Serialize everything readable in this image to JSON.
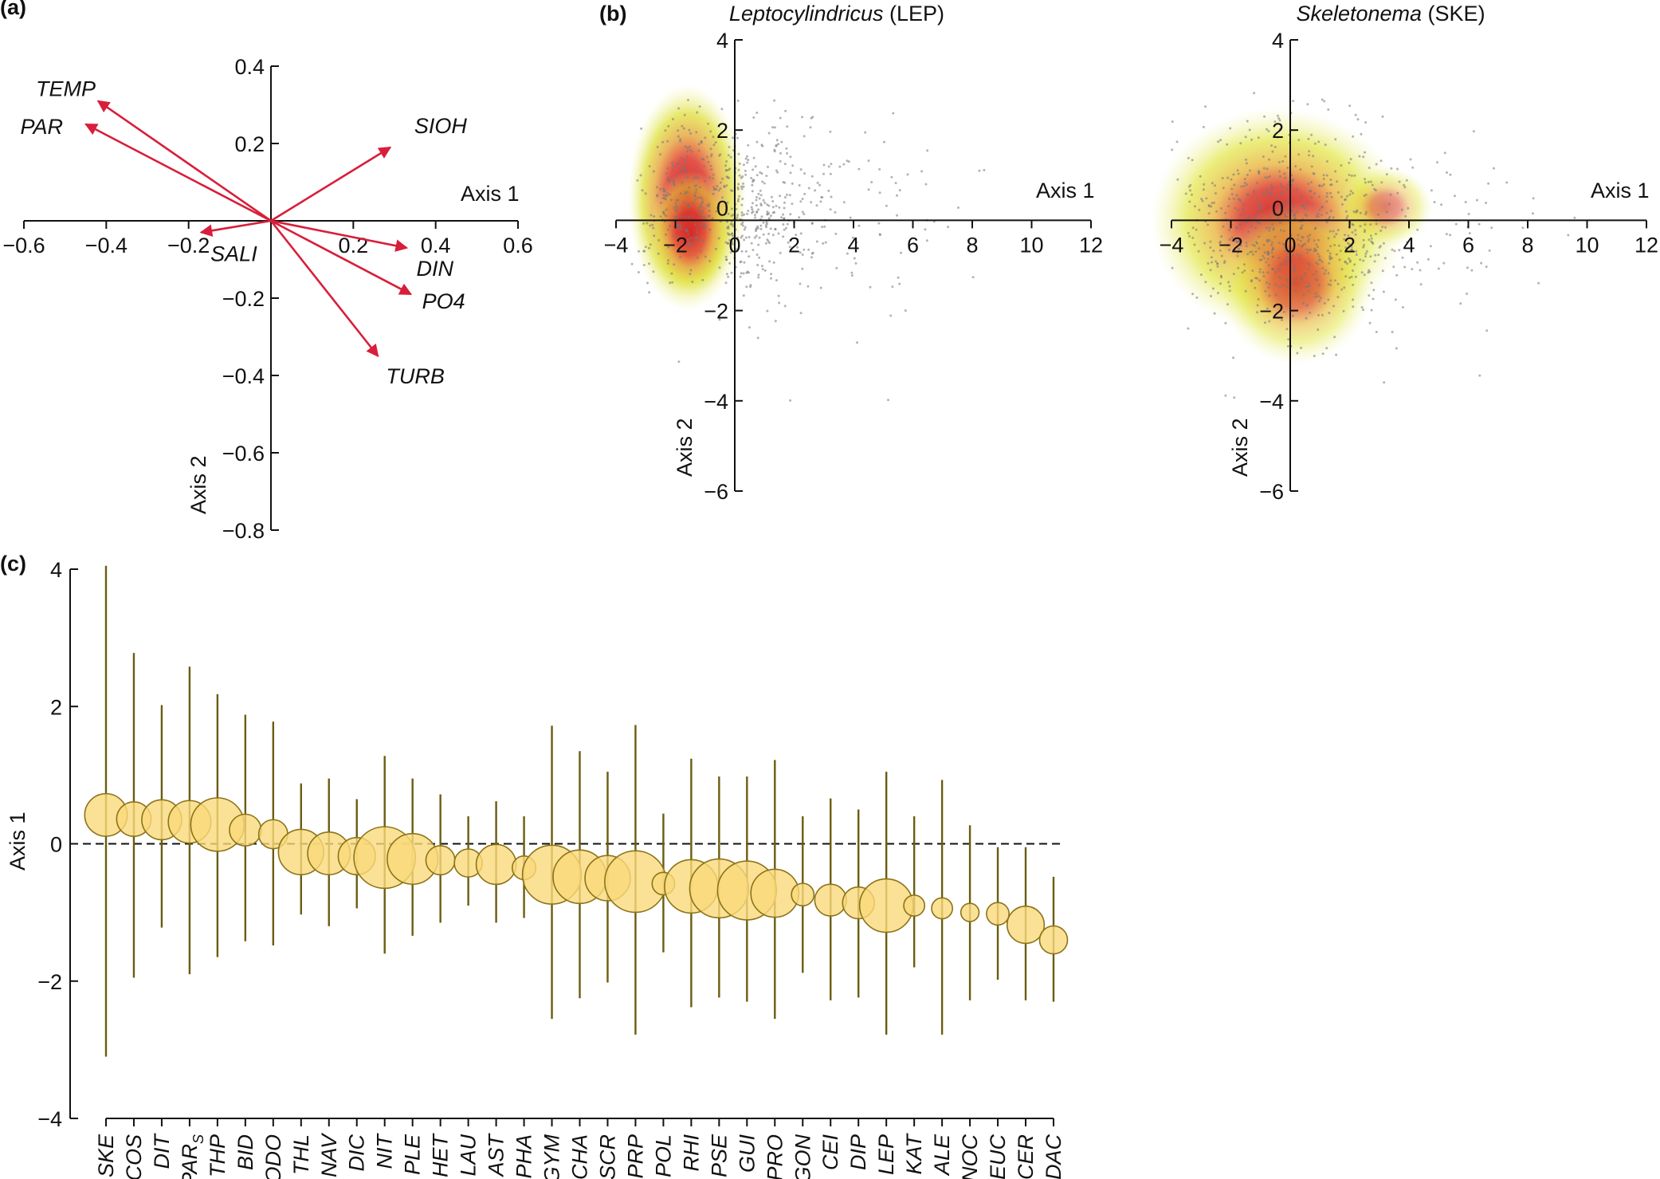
{
  "chart_data": [
    {
      "panel": "(a)",
      "type": "biplot",
      "xlabel": "Axis 1",
      "ylabel": "Axis 2",
      "xlim": [
        -0.6,
        0.6
      ],
      "ylim": [
        -0.8,
        0.4
      ],
      "xticks": [
        "−0.6",
        "−0.4",
        "−0.2",
        "0.2",
        "0.4",
        "0.6"
      ],
      "xtick_values": [
        -0.6,
        -0.4,
        -0.2,
        0.2,
        0.4,
        0.6
      ],
      "yticks": [
        "0.4",
        "0.2",
        "−0.2",
        "−0.4",
        "−0.6",
        "−0.8"
      ],
      "ytick_values": [
        0.4,
        0.2,
        -0.2,
        -0.4,
        -0.6,
        -0.8
      ],
      "vectors": [
        {
          "label": "TEMP",
          "x": -0.42,
          "y": 0.31
        },
        {
          "label": "PAR",
          "x": -0.45,
          "y": 0.25
        },
        {
          "label": "SIOH",
          "x": 0.29,
          "y": 0.19
        },
        {
          "label": "SALI",
          "x": -0.17,
          "y": -0.03
        },
        {
          "label": "DIN",
          "x": 0.33,
          "y": -0.07
        },
        {
          "label": "PO4",
          "x": 0.34,
          "y": -0.19
        },
        {
          "label": "TURB",
          "x": 0.26,
          "y": -0.35
        }
      ]
    },
    {
      "panel": "(b)",
      "type": "scatter",
      "title_italic": "Leptocylindricus",
      "title_plain": " (LEP)",
      "xlabel": "Axis 1",
      "ylabel": "Axis 2",
      "xlim": [
        -4,
        12
      ],
      "ylim": [
        -6,
        4
      ],
      "xticks": [
        "−4",
        "−2",
        "0",
        "2",
        "4",
        "6",
        "8",
        "10",
        "12"
      ],
      "xtick_values": [
        -4,
        -2,
        0,
        2,
        4,
        6,
        8,
        10,
        12
      ],
      "yticks": [
        "4",
        "2",
        "−2",
        "−4",
        "−6"
      ],
      "ytick_values": [
        4,
        2,
        -2,
        -4,
        -6
      ],
      "density_core": {
        "x": -1.6,
        "y": 0.5
      },
      "scatter_spread": {
        "x_min": -3.5,
        "x_max": 11,
        "y_min": -4.8,
        "y_max": 2.8
      }
    },
    {
      "panel": "",
      "type": "scatter",
      "title_italic": "Skeletonema",
      "title_plain": " (SKE)",
      "xlabel": "Axis 1",
      "ylabel": "Axis 2",
      "xlim": [
        -4,
        12
      ],
      "ylim": [
        -6,
        4
      ],
      "xticks": [
        "−4",
        "−2",
        "0",
        "2",
        "4",
        "6",
        "8",
        "10",
        "12"
      ],
      "xtick_values": [
        -4,
        -2,
        0,
        2,
        4,
        6,
        8,
        10,
        12
      ],
      "yticks": [
        "4",
        "2",
        "−2",
        "−4",
        "−6"
      ],
      "ytick_values": [
        4,
        2,
        -2,
        -4,
        -6
      ],
      "density_core": {
        "x": -0.4,
        "y": 0.0
      },
      "scatter_spread": {
        "x_min": -4,
        "x_max": 11,
        "y_min": -4.8,
        "y_max": 3
      }
    },
    {
      "panel": "(c)",
      "type": "bubble-range",
      "ylabel": "Axis 1",
      "ylim": [
        -4,
        4
      ],
      "yticks": [
        "4",
        "2",
        "0",
        "−2",
        "−4"
      ],
      "ytick_values": [
        4,
        2,
        0,
        -2,
        -4
      ],
      "reference_line": 0,
      "categories": [
        "SKE",
        "COS",
        "DIT",
        "PAR",
        "THP",
        "BID",
        "ODO",
        "THL",
        "NAV",
        "DIC",
        "NIT",
        "PLE",
        "HET",
        "LAU",
        "AST",
        "PHA",
        "GYM",
        "CHA",
        "SCR",
        "PRP",
        "POL",
        "RHI",
        "PSE",
        "GUI",
        "PRO",
        "GON",
        "CEI",
        "DIP",
        "LEP",
        "KAT",
        "ALE",
        "NOC",
        "EUC",
        "CER",
        "DAC"
      ],
      "category_subscripts": {
        "PAR": "S"
      },
      "means": [
        0.42,
        0.36,
        0.35,
        0.32,
        0.28,
        0.2,
        0.14,
        -0.12,
        -0.14,
        -0.18,
        -0.2,
        -0.22,
        -0.24,
        -0.28,
        -0.3,
        -0.35,
        -0.45,
        -0.48,
        -0.5,
        -0.55,
        -0.58,
        -0.62,
        -0.65,
        -0.68,
        -0.72,
        -0.74,
        -0.82,
        -0.86,
        -0.9,
        -0.9,
        -0.94,
        -1.0,
        -1.02,
        -1.18,
        -1.4
      ],
      "mins": [
        -3.1,
        -1.95,
        -1.22,
        -1.9,
        -1.65,
        -1.42,
        -1.48,
        -1.03,
        -1.2,
        -0.94,
        -1.6,
        -1.34,
        -1.15,
        -0.9,
        -1.15,
        -1.08,
        -2.55,
        -2.25,
        -2.02,
        -2.78,
        -1.58,
        -2.38,
        -2.24,
        -2.3,
        -2.55,
        -1.88,
        -2.28,
        -2.24,
        -2.78,
        -1.8,
        -2.78,
        -2.28,
        -1.98,
        -2.28,
        -2.3
      ],
      "maxs": [
        4.05,
        2.78,
        2.02,
        2.58,
        2.18,
        1.88,
        1.78,
        0.88,
        0.95,
        0.65,
        1.28,
        0.95,
        0.72,
        0.4,
        0.62,
        0.4,
        1.72,
        1.35,
        1.05,
        1.73,
        0.44,
        1.24,
        0.98,
        0.98,
        1.22,
        0.4,
        0.66,
        0.5,
        1.05,
        0.4,
        0.93,
        0.27,
        -0.05,
        -0.05,
        -0.48
      ],
      "relative_size": [
        0.55,
        0.4,
        0.5,
        0.55,
        0.75,
        0.35,
        0.3,
        0.6,
        0.55,
        0.45,
        0.9,
        0.7,
        0.3,
        0.28,
        0.5,
        0.2,
        0.85,
        0.75,
        0.6,
        0.9,
        0.18,
        0.75,
        0.85,
        0.85,
        0.65,
        0.18,
        0.35,
        0.35,
        0.75,
        0.15,
        0.15,
        0.1,
        0.18,
        0.45,
        0.28
      ]
    }
  ]
}
